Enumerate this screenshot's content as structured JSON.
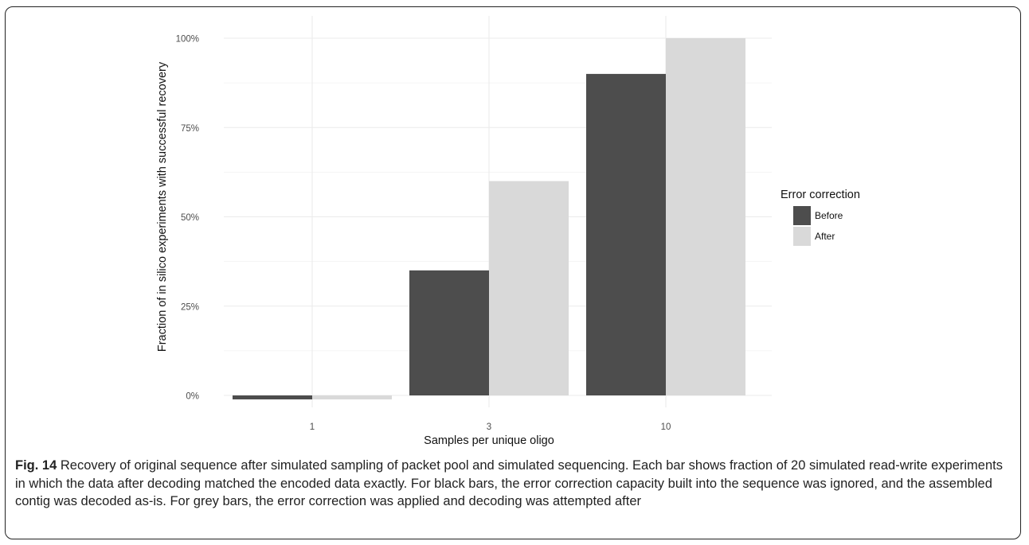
{
  "chart_data": {
    "type": "bar",
    "xlabel": "Samples per unique oligo",
    "ylabel": "Fraction of in silico experiments with successful recovery",
    "categories": [
      "1",
      "3",
      "10"
    ],
    "series": [
      {
        "name": "Before",
        "color": "#4d4d4d",
        "values": [
          0,
          0.35,
          0.9
        ]
      },
      {
        "name": "After",
        "color": "#d9d9d9",
        "values": [
          0,
          0.6,
          1.0
        ]
      }
    ],
    "ylim": [
      0,
      1
    ],
    "yticks": [
      0,
      0.25,
      0.5,
      0.75,
      1.0
    ],
    "ytick_labels": [
      "0%",
      "25%",
      "50%",
      "75%",
      "100%"
    ],
    "grid": true,
    "legend": {
      "title": "Error correction",
      "position": "right"
    }
  },
  "caption": {
    "label": "Fig. 14",
    "text": "Recovery of original sequence after simulated sampling of packet pool and simulated sequencing. Each bar shows fraction of 20 simulated read-write experiments in which the data after decoding matched the encoded data exactly. For black bars, the error correction capacity built into the sequence was ignored, and the assembled contig was decoded as-is. For grey bars, the error correction was applied and decoding was attempted after"
  }
}
